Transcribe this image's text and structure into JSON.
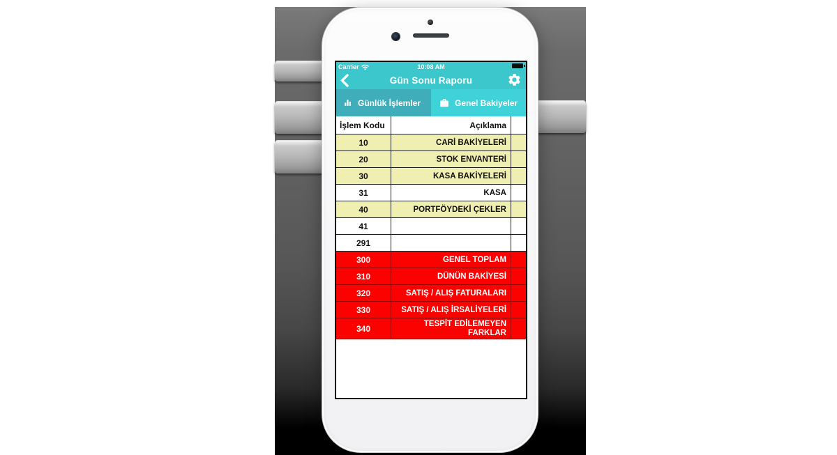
{
  "device": {
    "carrier": "Carrier",
    "time": "10:08 AM"
  },
  "nav": {
    "title": "Gün Sonu Raporu",
    "back_icon": "chevron-left-icon",
    "settings_icon": "gear-icon"
  },
  "tabs": [
    {
      "label": "Günlük İşlemler",
      "icon": "bar-chart-icon",
      "selected": true
    },
    {
      "label": "Genel Bakiyeler",
      "icon": "briefcase-icon",
      "selected": false
    }
  ],
  "table": {
    "headers": [
      "İşlem Kodu",
      "Açıklama"
    ],
    "rows": [
      {
        "code": "10",
        "description": "CARİ BAKİYELERİ",
        "style": "yellow"
      },
      {
        "code": "20",
        "description": "STOK ENVANTERİ",
        "style": "yellow"
      },
      {
        "code": "30",
        "description": "KASA BAKİYELERİ",
        "style": "yellow"
      },
      {
        "code": "31",
        "description": "KASA",
        "style": "white"
      },
      {
        "code": "40",
        "description": "PORTFÖYDEKİ ÇEKLER",
        "style": "yellow"
      },
      {
        "code": "41",
        "description": "",
        "style": "white"
      },
      {
        "code": "291",
        "description": "",
        "style": "white"
      },
      {
        "code": "300",
        "description": "GENEL TOPLAM",
        "style": "red"
      },
      {
        "code": "310",
        "description": "DÜNÜN BAKİYESİ",
        "style": "red"
      },
      {
        "code": "320",
        "description": "SATIŞ / ALIŞ FATURALARI",
        "style": "red"
      },
      {
        "code": "330",
        "description": "SATIŞ / ALIŞ İRSALİYELERİ",
        "style": "red"
      },
      {
        "code": "340",
        "description": "TESPİT EDİLEMEYEN FARKLAR",
        "style": "red",
        "wrap": true
      }
    ]
  },
  "colors": {
    "navbar": "#3CC7CD",
    "tabbar": "#3FD3D9",
    "tab-selected": "#3FAEBA",
    "row-yellow": "#F0EFB2",
    "row-red": "#FB0100",
    "grid": "#1C1C1C"
  }
}
